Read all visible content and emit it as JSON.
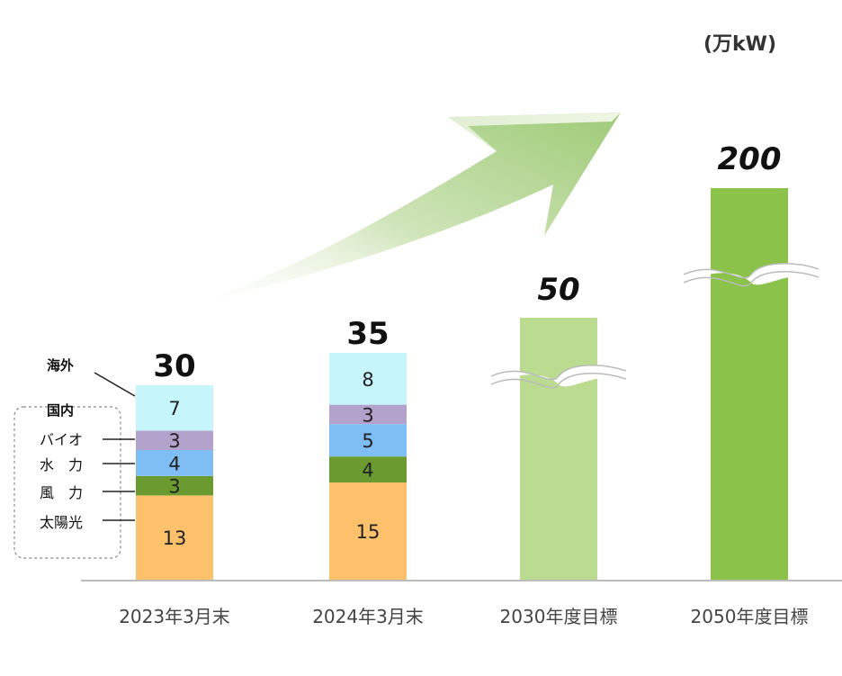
{
  "unit_label": "(万kW)",
  "legend": {
    "overseas": "海外",
    "domestic": "国内",
    "bio": "バイオ",
    "hydro": "水　力",
    "wind": "風　力",
    "solar": "太陽光"
  },
  "colors": {
    "overseas": "#c6f5fb",
    "bio": "#b3a3cc",
    "hydro": "#7fbdf5",
    "wind": "#6a9a30",
    "solar": "#fdc16b",
    "target2030": "#badb90",
    "target2050": "#8bc24a",
    "arrow": "#a9cf85",
    "axis": "#bbbbbb"
  },
  "chart_data": {
    "type": "bar",
    "stacked": true,
    "categories": [
      "2023年3月末",
      "2024年3月末",
      "2030年度目標",
      "2050年度目標"
    ],
    "series": [
      {
        "key": "solar",
        "values": [
          13,
          15,
          null,
          null
        ]
      },
      {
        "key": "wind",
        "values": [
          3,
          4,
          null,
          null
        ]
      },
      {
        "key": "hydro",
        "values": [
          4,
          5,
          null,
          null
        ]
      },
      {
        "key": "bio",
        "values": [
          3,
          3,
          null,
          null
        ]
      },
      {
        "key": "overseas",
        "values": [
          7,
          8,
          null,
          null
        ]
      },
      {
        "key": "target",
        "values": [
          null,
          null,
          50,
          200
        ]
      }
    ],
    "totals": [
      "30",
      "35",
      "50",
      "200"
    ],
    "axis_break": true,
    "ylabel": "(万kW)"
  }
}
